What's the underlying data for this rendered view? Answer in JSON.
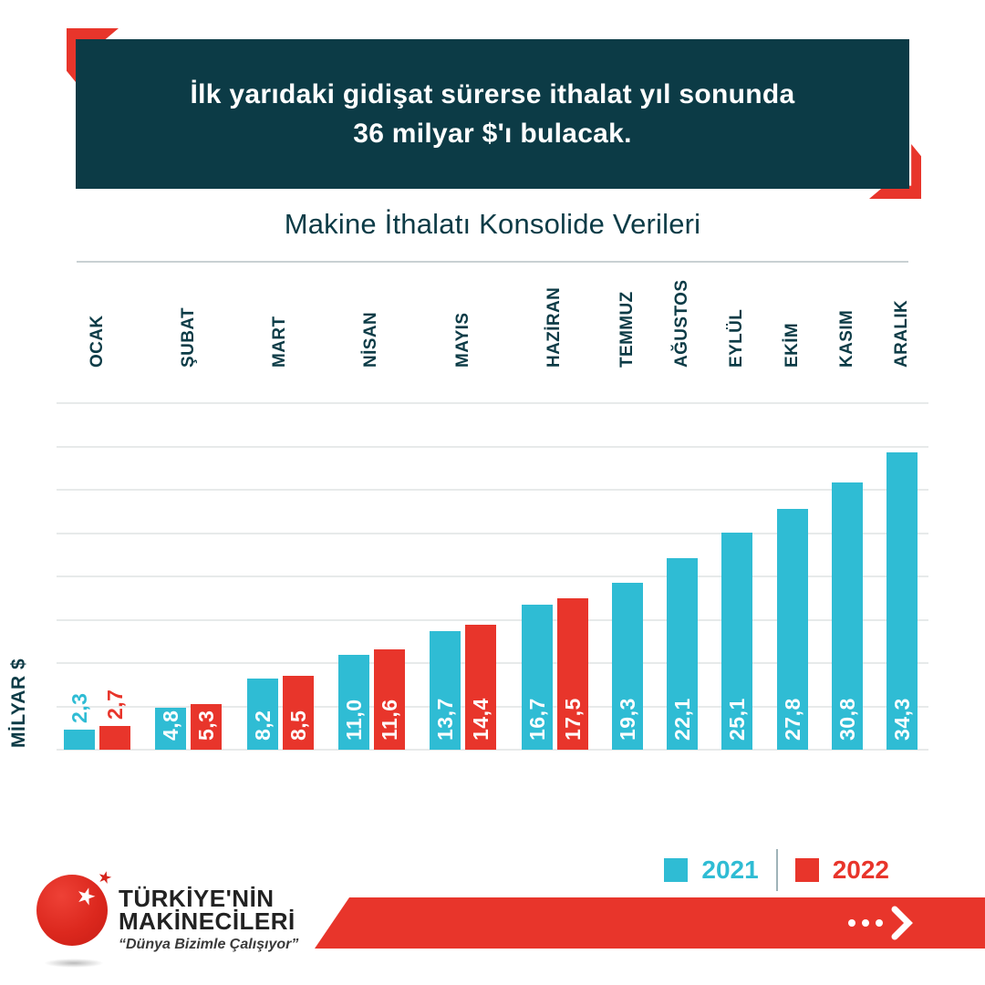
{
  "header": {
    "lines": [
      "İlk yarıdaki gidişat sürerse ithalat yıl sonunda",
      "36 milyar $'ı bulacak."
    ],
    "bg_color": "#0c3b46",
    "accent_color": "#e8352b"
  },
  "chart_data": {
    "type": "bar",
    "title": "Makine İthalatı Konsolide Verileri",
    "ylabel": "MİLYAR $",
    "categories": [
      "OCAK",
      "ŞUBAT",
      "MART",
      "NİSAN",
      "MAYIS",
      "HAZİRAN",
      "TEMMUZ",
      "AĞUSTOS",
      "EYLÜL",
      "EKİM",
      "KASIM",
      "ARALIK"
    ],
    "series": [
      {
        "name": "2021",
        "color": "#2fbcd4",
        "values": [
          2.3,
          4.8,
          8.2,
          11.0,
          13.7,
          16.7,
          19.3,
          22.1,
          25.1,
          27.8,
          30.8,
          34.3
        ],
        "labels": [
          "2,3",
          "4,8",
          "8,2",
          "11,0",
          "13,7",
          "16,7",
          "19,3",
          "22,1",
          "25,1",
          "27,8",
          "30,8",
          "34,3"
        ]
      },
      {
        "name": "2022",
        "color": "#e8352b",
        "values": [
          2.7,
          5.3,
          8.5,
          11.6,
          14.4,
          17.5,
          null,
          null,
          null,
          null,
          null,
          null
        ],
        "labels": [
          "2,7",
          "5,3",
          "8,5",
          "11,6",
          "14,4",
          "17,5",
          null,
          null,
          null,
          null,
          null,
          null
        ]
      }
    ],
    "ylim": [
      0,
      40
    ],
    "gridline_step": 5,
    "grid": true,
    "legend_position": "bottom-right",
    "value_label_style": "inside-bottom-rotated, first month above bars in series color"
  },
  "footer": {
    "logo": {
      "line1": "TÜRKİYE'NİN",
      "line2": "MAKİNECİLERİ",
      "tagline": "“Dünya Bizimle Çalışıyor”"
    },
    "banner_color": "#e8352b"
  }
}
